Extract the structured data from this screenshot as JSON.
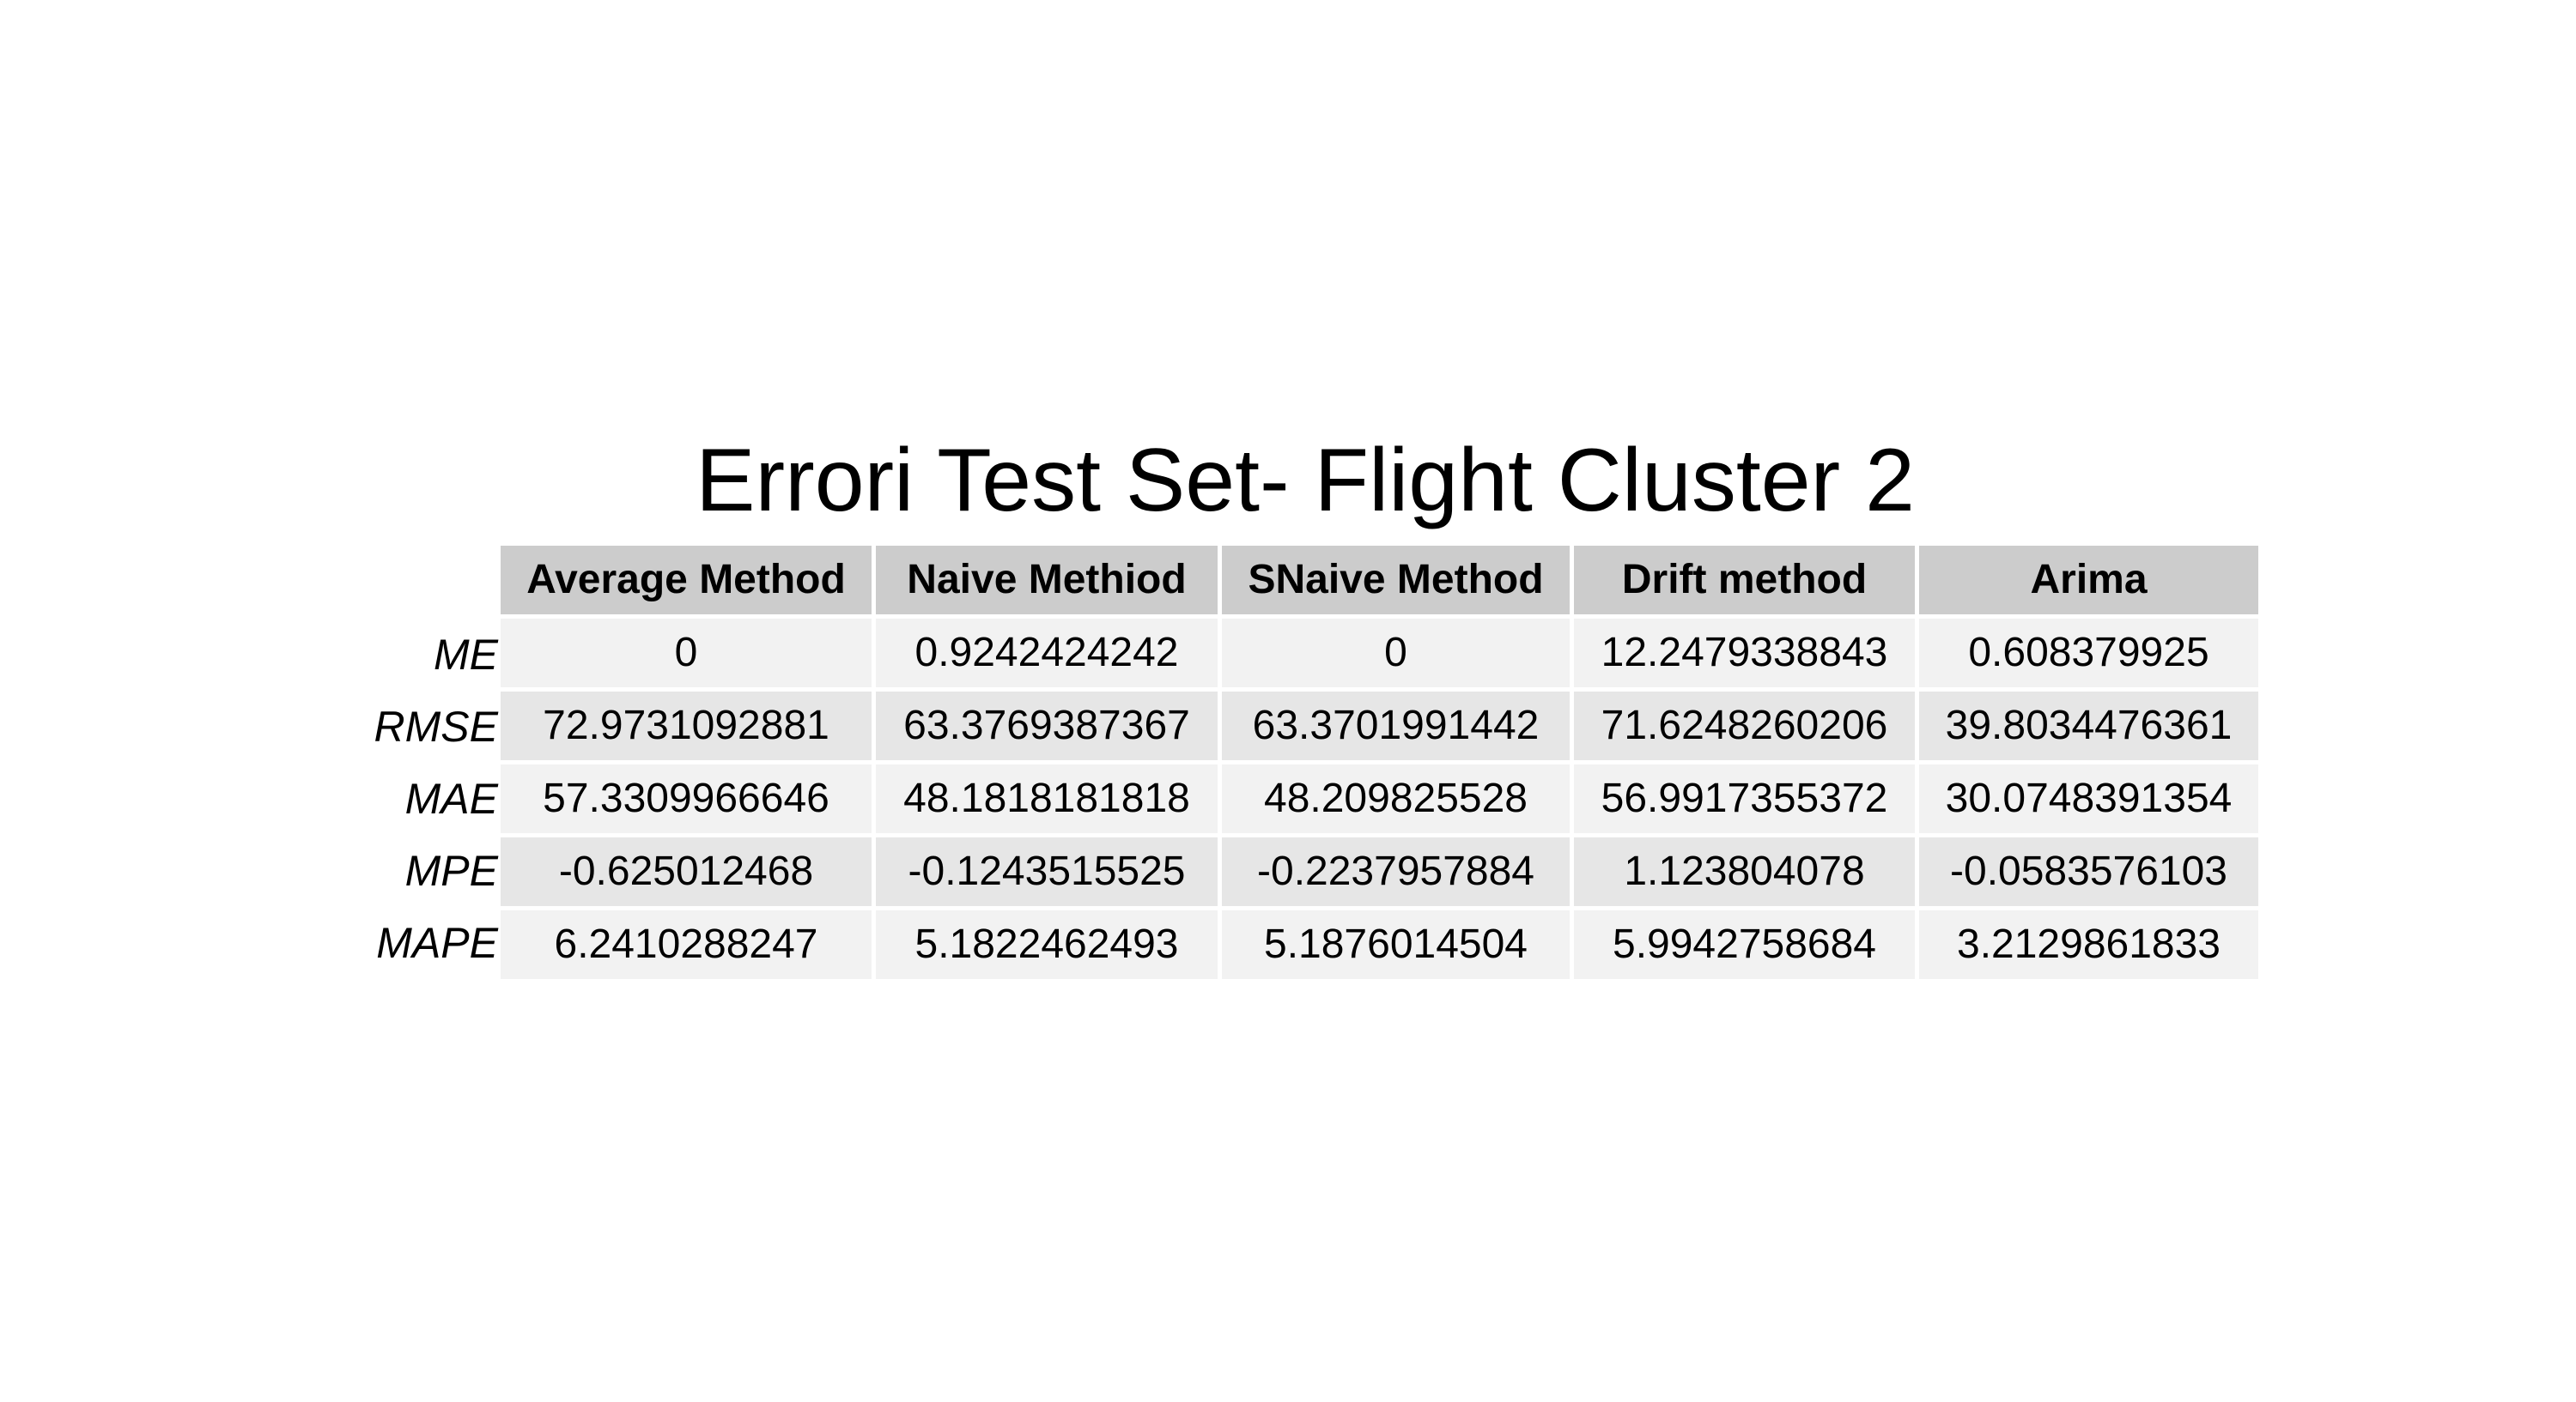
{
  "chart_data": {
    "type": "table",
    "title": "Errori Test Set- Flight Cluster 2",
    "columns": [
      "Average Method",
      "Naive Methiod",
      "SNaive Method",
      "Drift method",
      "Arima"
    ],
    "row_labels": [
      "ME",
      "RMSE",
      "MAE",
      "MPE",
      "MAPE"
    ],
    "rows": [
      [
        "0",
        "0.9242424242",
        "0",
        "12.2479338843",
        "0.608379925"
      ],
      [
        "72.9731092881",
        "63.3769387367",
        "63.3701991442",
        "71.6248260206",
        "39.8034476361"
      ],
      [
        "57.3309966646",
        "48.1818181818",
        "48.209825528",
        "56.9917355372",
        "30.0748391354"
      ],
      [
        "-0.625012468",
        "-0.1243515525",
        "-0.2237957884",
        "1.123804078",
        "-0.0583576103"
      ],
      [
        "6.2410288247",
        "5.1822462493",
        "5.1876014504",
        "5.9942758684",
        "3.2129861833"
      ]
    ],
    "colors": {
      "header_bg": "#cccccc",
      "row_odd_bg": "#e6e6e6",
      "row_even_bg": "#f2f2f2"
    }
  }
}
